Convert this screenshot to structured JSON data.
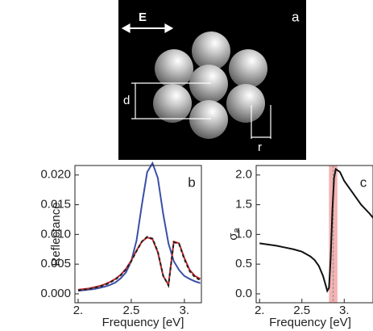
{
  "panel_a": {
    "label": "a",
    "field": "E",
    "distance": "d",
    "radius": "r"
  },
  "chart_data": [
    {
      "type": "line",
      "label": "b",
      "xlabel": "Frequency [eV]",
      "ylabel": "Reflectance",
      "x": [
        2.0,
        2.05,
        2.1,
        2.15,
        2.2,
        2.25,
        2.3,
        2.35,
        2.4,
        2.45,
        2.5,
        2.55,
        2.6,
        2.65,
        2.7,
        2.75,
        2.8,
        2.85,
        2.9,
        2.95,
        3.0,
        3.05,
        3.1,
        3.15
      ],
      "series": [
        {
          "color": "#3a4fa6",
          "values": [
            0.0005,
            0.0006,
            0.0007,
            0.0008,
            0.001,
            0.0012,
            0.0015,
            0.0019,
            0.0026,
            0.0036,
            0.0055,
            0.009,
            0.015,
            0.0205,
            0.022,
            0.0195,
            0.0135,
            0.0085,
            0.0055,
            0.004,
            0.003,
            0.0025,
            0.0021,
            0.0018
          ]
        },
        {
          "color": "#c0262b",
          "values": [
            0.0007,
            0.0008,
            0.0009,
            0.0011,
            0.0013,
            0.0016,
            0.002,
            0.0025,
            0.0032,
            0.0042,
            0.0056,
            0.0073,
            0.0088,
            0.0095,
            0.0092,
            0.007,
            0.003,
            0.0015,
            0.0088,
            0.0085,
            0.006,
            0.004,
            0.003,
            0.0025
          ]
        },
        {
          "color": "#222222",
          "dash": true,
          "values": [
            0.0006,
            0.0007,
            0.0008,
            0.001,
            0.0012,
            0.0015,
            0.0019,
            0.0024,
            0.0031,
            0.0041,
            0.0055,
            0.0072,
            0.0088,
            0.0096,
            0.0093,
            0.0071,
            0.0031,
            0.0014,
            0.0087,
            0.0084,
            0.0058,
            0.0038,
            0.0028,
            0.0023
          ]
        }
      ],
      "xlim": [
        1.97,
        3.16
      ],
      "xticks": [
        {
          "value": 2,
          "label": "2."
        },
        2.5,
        {
          "value": 3,
          "label": "3."
        }
      ],
      "ylim": [
        -0.0015,
        0.0216
      ],
      "yticks": [
        {
          "value": 0,
          "label": "0.000"
        },
        0.005,
        {
          "value": 0.01,
          "label": "0.010"
        },
        0.015,
        {
          "value": 0.02,
          "label": "0.020"
        }
      ]
    },
    {
      "type": "line",
      "label": "c",
      "xlabel": "Frequency [eV]",
      "ylabel": "σ",
      "ylabel_sub": "a",
      "x": [
        2.0,
        2.1,
        2.2,
        2.3,
        2.4,
        2.5,
        2.6,
        2.65,
        2.7,
        2.75,
        2.78,
        2.8,
        2.82,
        2.84,
        2.86,
        2.88,
        2.9,
        2.95,
        3.0,
        3.1,
        3.2,
        3.3,
        3.34
      ],
      "series": [
        {
          "color": "#111111",
          "values": [
            0.85,
            0.83,
            0.81,
            0.78,
            0.75,
            0.71,
            0.63,
            0.57,
            0.47,
            0.3,
            0.15,
            0.05,
            0.1,
            0.6,
            1.4,
            1.95,
            2.1,
            2.05,
            1.9,
            1.7,
            1.5,
            1.35,
            1.28
          ]
        }
      ],
      "band": [
        2.82,
        2.92
      ],
      "band_color": "#f4b3b3",
      "vline": 2.87,
      "xlim": [
        1.96,
        3.34
      ],
      "xticks": [
        {
          "value": 2,
          "label": "2."
        },
        2.5,
        {
          "value": 3,
          "label": "3."
        }
      ],
      "ylim": [
        -0.15,
        2.16
      ],
      "yticks": [
        {
          "value": 0,
          "label": "0.0"
        },
        0.5,
        {
          "value": 1,
          "label": "1.0"
        },
        1.5,
        {
          "value": 2,
          "label": "2.0"
        }
      ]
    }
  ]
}
